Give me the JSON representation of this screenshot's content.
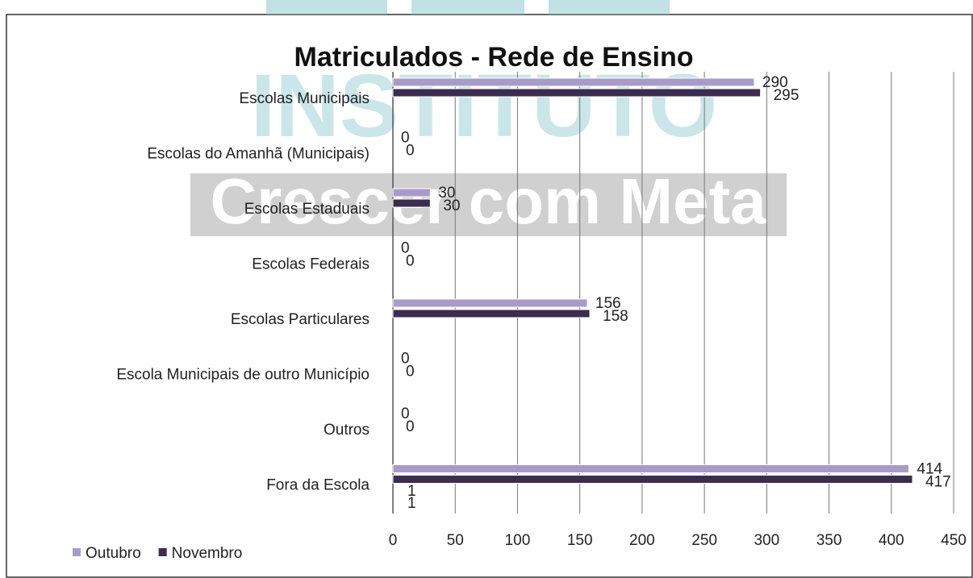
{
  "chart_data": {
    "type": "bar",
    "orientation": "horizontal",
    "title": "Matriculados - Rede de Ensino",
    "watermark": {
      "line1": "INSTITUTO",
      "line2": "Crescer com Meta"
    },
    "categories": [
      "Escolas Municipais",
      "Escolas do Amanhã (Municipais)",
      "Escolas Estaduais",
      "Escolas Federais",
      "Escolas Particulares",
      "Escola Municipais de outro Município",
      "Outros",
      "Fora da Escola"
    ],
    "series": [
      {
        "name": "Outubro",
        "color": "#a99bc9",
        "values": [
          290,
          0,
          30,
          0,
          156,
          0,
          0,
          414
        ]
      },
      {
        "name": "Novembro",
        "color": "#3b2d4f",
        "values": [
          295,
          0,
          30,
          0,
          158,
          0,
          0,
          417
        ]
      }
    ],
    "annotations": [
      "1",
      "1"
    ],
    "xlim": [
      0,
      450
    ],
    "xticks": [
      0,
      50,
      100,
      150,
      200,
      250,
      300,
      350,
      400,
      450
    ],
    "grid": true,
    "legend": "bottom-left"
  }
}
